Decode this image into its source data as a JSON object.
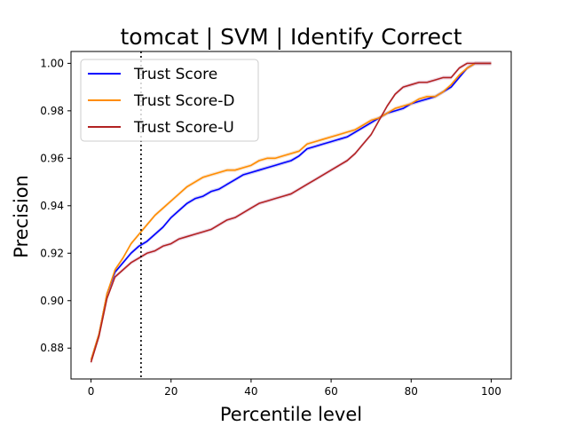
{
  "chart_data": {
    "type": "line",
    "title": "tomcat | SVM | Identify Correct",
    "xlabel": "Percentile level",
    "ylabel": "Precision",
    "xlim": [
      -5,
      105
    ],
    "ylim": [
      0.867,
      1.005
    ],
    "xticks": [
      0,
      20,
      40,
      60,
      80,
      100
    ],
    "yticks": [
      0.88,
      0.9,
      0.92,
      0.94,
      0.96,
      0.98,
      1.0
    ],
    "xtick_labels": [
      "0",
      "20",
      "40",
      "60",
      "80",
      "100"
    ],
    "ytick_labels": [
      "0.88",
      "0.90",
      "0.92",
      "0.94",
      "0.96",
      "0.98",
      "1.00"
    ],
    "grid": false,
    "legend_position": "top-left",
    "reference_line": {
      "x": 12.5,
      "style": "dotted",
      "color": "#000000"
    },
    "x": [
      0,
      2,
      4,
      6,
      8,
      10,
      12,
      14,
      16,
      18,
      20,
      22,
      24,
      26,
      28,
      30,
      32,
      34,
      36,
      38,
      40,
      42,
      44,
      46,
      48,
      50,
      52,
      54,
      56,
      58,
      60,
      62,
      64,
      66,
      68,
      70,
      72,
      74,
      76,
      78,
      80,
      82,
      84,
      86,
      88,
      90,
      92,
      94,
      96,
      98,
      100
    ],
    "series": [
      {
        "name": "Trust Score",
        "color": "#0000ff",
        "band_color": "#9999ee",
        "values": [
          0.875,
          0.886,
          0.903,
          0.912,
          0.916,
          0.92,
          0.923,
          0.925,
          0.928,
          0.931,
          0.935,
          0.938,
          0.941,
          0.943,
          0.944,
          0.946,
          0.947,
          0.949,
          0.951,
          0.953,
          0.954,
          0.955,
          0.956,
          0.957,
          0.958,
          0.959,
          0.961,
          0.964,
          0.965,
          0.966,
          0.967,
          0.968,
          0.969,
          0.971,
          0.973,
          0.975,
          0.977,
          0.979,
          0.98,
          0.981,
          0.983,
          0.984,
          0.985,
          0.986,
          0.988,
          0.99,
          0.994,
          0.998,
          1.0,
          1.0,
          1.0
        ]
      },
      {
        "name": "Trust Score-D",
        "color": "#ff8c00",
        "band_color": "#f5c89a",
        "values": [
          0.875,
          0.886,
          0.903,
          0.913,
          0.918,
          0.924,
          0.928,
          0.932,
          0.936,
          0.939,
          0.942,
          0.945,
          0.948,
          0.95,
          0.952,
          0.953,
          0.954,
          0.955,
          0.955,
          0.956,
          0.957,
          0.959,
          0.96,
          0.96,
          0.961,
          0.962,
          0.963,
          0.966,
          0.967,
          0.968,
          0.969,
          0.97,
          0.971,
          0.972,
          0.974,
          0.976,
          0.977,
          0.979,
          0.981,
          0.982,
          0.983,
          0.985,
          0.986,
          0.986,
          0.988,
          0.991,
          0.995,
          0.998,
          1.0,
          1.0,
          1.0
        ]
      },
      {
        "name": "Trust Score-U",
        "color": "#b22222",
        "band_color": "#d9a6c4",
        "values": [
          0.874,
          0.885,
          0.901,
          0.91,
          0.913,
          0.916,
          0.918,
          0.92,
          0.921,
          0.923,
          0.924,
          0.926,
          0.927,
          0.928,
          0.929,
          0.93,
          0.932,
          0.934,
          0.935,
          0.937,
          0.939,
          0.941,
          0.942,
          0.943,
          0.944,
          0.945,
          0.947,
          0.949,
          0.951,
          0.953,
          0.955,
          0.957,
          0.959,
          0.962,
          0.966,
          0.97,
          0.976,
          0.982,
          0.987,
          0.99,
          0.991,
          0.992,
          0.992,
          0.993,
          0.994,
          0.994,
          0.998,
          1.0,
          1.0,
          1.0,
          1.0
        ]
      }
    ]
  }
}
